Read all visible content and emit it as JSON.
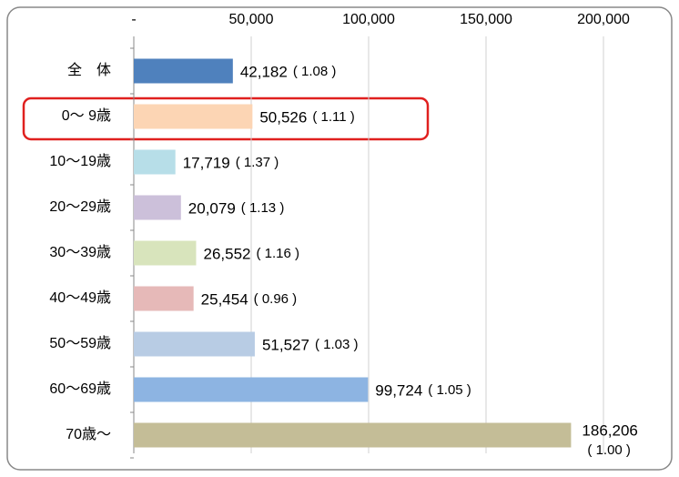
{
  "chart_data": {
    "type": "bar",
    "orientation": "horizontal",
    "categories": [
      "全　体",
      "0～ 9歳",
      "10～19歳",
      "20～29歳",
      "30～39歳",
      "40～49歳",
      "50～59歳",
      "60～69歳",
      "70歳～"
    ],
    "values": [
      42182,
      50526,
      17719,
      20079,
      26552,
      25454,
      51527,
      99724,
      186206
    ],
    "value_labels": [
      "42,182",
      "50,526",
      "17,719",
      "20,079",
      "26,552",
      "25,454",
      "51,527",
      "99,724",
      "186,206"
    ],
    "ratio_labels": [
      "( 1.08 )",
      "( 1.11 )",
      "( 1.37 )",
      "( 1.13 )",
      "( 1.16 )",
      "( 0.96 )",
      "( 1.03 )",
      "( 1.05 )",
      "( 1.00 )"
    ],
    "colors": [
      "#4f81bd",
      "#fcd5b4",
      "#b7dee8",
      "#ccc0da",
      "#d8e4bc",
      "#e6b9b8",
      "#b8cce4",
      "#8db4e2",
      "#c4bd97"
    ],
    "xlim": [
      0,
      200000
    ],
    "xticks": [
      {
        "value": 0,
        "label": "-"
      },
      {
        "value": 50000,
        "label": "50,000"
      },
      {
        "value": 100000,
        "label": "100,000"
      },
      {
        "value": 150000,
        "label": "150,000"
      },
      {
        "value": 200000,
        "label": "200,000"
      }
    ],
    "grid": true
  }
}
